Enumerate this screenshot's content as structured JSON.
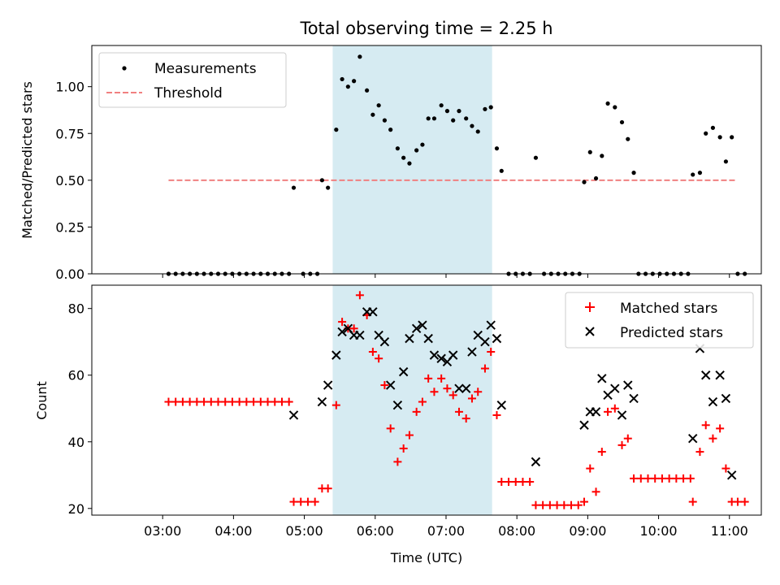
{
  "chart_data": {
    "type": "scatter",
    "title": "Total observing time = 2.25 h",
    "xlabel": "Time (UTC)",
    "x_ticks": [
      "03:00",
      "04:00",
      "05:00",
      "06:00",
      "07:00",
      "08:00",
      "09:00",
      "10:00",
      "11:00"
    ],
    "xlim_hours": [
      2.0,
      11.45
    ],
    "highlight_span": {
      "start": "05:24",
      "end": "07:39",
      "color": "#add8e6"
    },
    "top_panel": {
      "ylabel": "Matched/Predicted stars",
      "ylim": [
        0,
        1.22
      ],
      "y_ticks": [
        "0.00",
        "0.25",
        "0.50",
        "0.75",
        "1.00"
      ],
      "legend": {
        "position": "upper-left",
        "entries": [
          "Measurements",
          "Threshold"
        ]
      },
      "threshold": {
        "name": "Threshold",
        "value": 0.5,
        "x_range": [
          "03:05",
          "11:05"
        ],
        "color": "#f08080"
      },
      "measurements": {
        "name": "Measurements",
        "color": "#000000",
        "points": [
          [
            "03:05",
            0
          ],
          [
            "03:11",
            0
          ],
          [
            "03:17",
            0
          ],
          [
            "03:23",
            0
          ],
          [
            "03:29",
            0
          ],
          [
            "03:35",
            0
          ],
          [
            "03:41",
            0
          ],
          [
            "03:47",
            0
          ],
          [
            "03:53",
            0
          ],
          [
            "03:59",
            0
          ],
          [
            "04:05",
            0
          ],
          [
            "04:11",
            0
          ],
          [
            "04:17",
            0
          ],
          [
            "04:23",
            0
          ],
          [
            "04:29",
            0
          ],
          [
            "04:35",
            0
          ],
          [
            "04:41",
            0
          ],
          [
            "04:47",
            0
          ],
          [
            "04:51",
            0.46
          ],
          [
            "04:59",
            0
          ],
          [
            "05:05",
            0
          ],
          [
            "05:11",
            0
          ],
          [
            "05:15",
            0.5
          ],
          [
            "05:20",
            0.46
          ],
          [
            "05:27",
            0.77
          ],
          [
            "05:32",
            1.04
          ],
          [
            "05:37",
            1.0
          ],
          [
            "05:42",
            1.03
          ],
          [
            "05:47",
            1.16
          ],
          [
            "05:53",
            0.98
          ],
          [
            "05:58",
            0.85
          ],
          [
            "06:03",
            0.9
          ],
          [
            "06:08",
            0.82
          ],
          [
            "06:13",
            0.77
          ],
          [
            "06:19",
            0.67
          ],
          [
            "06:24",
            0.62
          ],
          [
            "06:29",
            0.59
          ],
          [
            "06:35",
            0.66
          ],
          [
            "06:40",
            0.69
          ],
          [
            "06:45",
            0.83
          ],
          [
            "06:50",
            0.83
          ],
          [
            "06:56",
            0.9
          ],
          [
            "07:01",
            0.87
          ],
          [
            "07:06",
            0.82
          ],
          [
            "07:11",
            0.87
          ],
          [
            "07:17",
            0.83
          ],
          [
            "07:22",
            0.79
          ],
          [
            "07:27",
            0.76
          ],
          [
            "07:33",
            0.88
          ],
          [
            "07:38",
            0.89
          ],
          [
            "07:43",
            0.67
          ],
          [
            "07:47",
            0.55
          ],
          [
            "07:53",
            0
          ],
          [
            "07:59",
            0
          ],
          [
            "08:05",
            0
          ],
          [
            "08:11",
            0
          ],
          [
            "08:16",
            0.62
          ],
          [
            "08:23",
            0
          ],
          [
            "08:29",
            0
          ],
          [
            "08:35",
            0
          ],
          [
            "08:41",
            0
          ],
          [
            "08:47",
            0
          ],
          [
            "08:53",
            0
          ],
          [
            "08:57",
            0.49
          ],
          [
            "09:02",
            0.65
          ],
          [
            "09:07",
            0.51
          ],
          [
            "09:12",
            0.63
          ],
          [
            "09:17",
            0.91
          ],
          [
            "09:23",
            0.89
          ],
          [
            "09:29",
            0.81
          ],
          [
            "09:34",
            0.72
          ],
          [
            "09:39",
            0.54
          ],
          [
            "09:43",
            0
          ],
          [
            "09:49",
            0
          ],
          [
            "09:55",
            0
          ],
          [
            "10:01",
            0
          ],
          [
            "10:07",
            0
          ],
          [
            "10:13",
            0
          ],
          [
            "10:19",
            0
          ],
          [
            "10:25",
            0
          ],
          [
            "10:29",
            0.53
          ],
          [
            "10:35",
            0.54
          ],
          [
            "10:40",
            0.75
          ],
          [
            "10:46",
            0.78
          ],
          [
            "10:52",
            0.73
          ],
          [
            "10:57",
            0.6
          ],
          [
            "11:02",
            0.73
          ],
          [
            "11:07",
            0
          ],
          [
            "11:13",
            0
          ]
        ]
      }
    },
    "bottom_panel": {
      "ylabel": "Count",
      "ylim": [
        18,
        87
      ],
      "y_ticks": [
        "20",
        "40",
        "60",
        "80"
      ],
      "legend": {
        "position": "upper-right",
        "entries": [
          "Matched stars",
          "Predicted stars"
        ]
      },
      "series": [
        {
          "name": "Matched stars",
          "marker": "+",
          "color": "#ff0000",
          "points": [
            [
              "03:05",
              52
            ],
            [
              "03:11",
              52
            ],
            [
              "03:17",
              52
            ],
            [
              "03:23",
              52
            ],
            [
              "03:29",
              52
            ],
            [
              "03:35",
              52
            ],
            [
              "03:41",
              52
            ],
            [
              "03:47",
              52
            ],
            [
              "03:53",
              52
            ],
            [
              "03:59",
              52
            ],
            [
              "04:05",
              52
            ],
            [
              "04:11",
              52
            ],
            [
              "04:17",
              52
            ],
            [
              "04:23",
              52
            ],
            [
              "04:29",
              52
            ],
            [
              "04:35",
              52
            ],
            [
              "04:41",
              52
            ],
            [
              "04:47",
              52
            ],
            [
              "04:51",
              22
            ],
            [
              "04:57",
              22
            ],
            [
              "05:03",
              22
            ],
            [
              "05:09",
              22
            ],
            [
              "05:15",
              26
            ],
            [
              "05:20",
              26
            ],
            [
              "05:27",
              51
            ],
            [
              "05:32",
              76
            ],
            [
              "05:37",
              74
            ],
            [
              "05:42",
              74
            ],
            [
              "05:47",
              84
            ],
            [
              "05:53",
              78
            ],
            [
              "05:58",
              67
            ],
            [
              "06:03",
              65
            ],
            [
              "06:08",
              57
            ],
            [
              "06:13",
              44
            ],
            [
              "06:19",
              34
            ],
            [
              "06:24",
              38
            ],
            [
              "06:29",
              42
            ],
            [
              "06:35",
              49
            ],
            [
              "06:40",
              52
            ],
            [
              "06:45",
              59
            ],
            [
              "06:50",
              55
            ],
            [
              "06:56",
              59
            ],
            [
              "07:01",
              56
            ],
            [
              "07:06",
              54
            ],
            [
              "07:11",
              49
            ],
            [
              "07:17",
              47
            ],
            [
              "07:22",
              53
            ],
            [
              "07:27",
              55
            ],
            [
              "07:33",
              62
            ],
            [
              "07:38",
              67
            ],
            [
              "07:43",
              48
            ],
            [
              "07:47",
              28
            ],
            [
              "07:53",
              28
            ],
            [
              "07:59",
              28
            ],
            [
              "08:05",
              28
            ],
            [
              "08:11",
              28
            ],
            [
              "08:16",
              21
            ],
            [
              "08:22",
              21
            ],
            [
              "08:28",
              21
            ],
            [
              "08:34",
              21
            ],
            [
              "08:40",
              21
            ],
            [
              "08:46",
              21
            ],
            [
              "08:52",
              21
            ],
            [
              "08:57",
              22
            ],
            [
              "09:02",
              32
            ],
            [
              "09:07",
              25
            ],
            [
              "09:12",
              37
            ],
            [
              "09:17",
              49
            ],
            [
              "09:23",
              50
            ],
            [
              "09:29",
              39
            ],
            [
              "09:34",
              41
            ],
            [
              "09:39",
              29
            ],
            [
              "09:45",
              29
            ],
            [
              "09:51",
              29
            ],
            [
              "09:57",
              29
            ],
            [
              "10:03",
              29
            ],
            [
              "10:09",
              29
            ],
            [
              "10:15",
              29
            ],
            [
              "10:21",
              29
            ],
            [
              "10:27",
              29
            ],
            [
              "10:29",
              22
            ],
            [
              "10:35",
              37
            ],
            [
              "10:40",
              45
            ],
            [
              "10:46",
              41
            ],
            [
              "10:52",
              44
            ],
            [
              "10:57",
              32
            ],
            [
              "11:02",
              22
            ],
            [
              "11:07",
              22
            ],
            [
              "11:13",
              22
            ]
          ]
        },
        {
          "name": "Predicted stars",
          "marker": "x",
          "color": "#000000",
          "points": [
            [
              "04:51",
              48
            ],
            [
              "05:15",
              52
            ],
            [
              "05:20",
              57
            ],
            [
              "05:27",
              66
            ],
            [
              "05:32",
              73
            ],
            [
              "05:37",
              74
            ],
            [
              "05:42",
              72
            ],
            [
              "05:47",
              72
            ],
            [
              "05:53",
              79
            ],
            [
              "05:58",
              79
            ],
            [
              "06:03",
              72
            ],
            [
              "06:08",
              70
            ],
            [
              "06:13",
              57
            ],
            [
              "06:19",
              51
            ],
            [
              "06:24",
              61
            ],
            [
              "06:29",
              71
            ],
            [
              "06:35",
              74
            ],
            [
              "06:40",
              75
            ],
            [
              "06:45",
              71
            ],
            [
              "06:50",
              66
            ],
            [
              "06:56",
              65
            ],
            [
              "07:01",
              64
            ],
            [
              "07:06",
              66
            ],
            [
              "07:11",
              56
            ],
            [
              "07:17",
              56
            ],
            [
              "07:22",
              67
            ],
            [
              "07:27",
              72
            ],
            [
              "07:33",
              70
            ],
            [
              "07:38",
              75
            ],
            [
              "07:43",
              71
            ],
            [
              "07:47",
              51
            ],
            [
              "08:16",
              34
            ],
            [
              "08:57",
              45
            ],
            [
              "09:02",
              49
            ],
            [
              "09:07",
              49
            ],
            [
              "09:12",
              59
            ],
            [
              "09:17",
              54
            ],
            [
              "09:23",
              56
            ],
            [
              "09:29",
              48
            ],
            [
              "09:34",
              57
            ],
            [
              "09:39",
              53
            ],
            [
              "10:29",
              41
            ],
            [
              "10:35",
              68
            ],
            [
              "10:40",
              60
            ],
            [
              "10:46",
              52
            ],
            [
              "10:52",
              60
            ],
            [
              "10:57",
              53
            ],
            [
              "11:02",
              30
            ]
          ]
        }
      ]
    }
  }
}
